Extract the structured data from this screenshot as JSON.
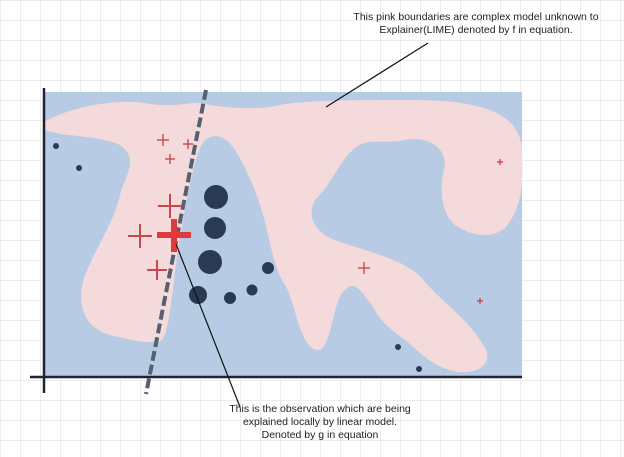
{
  "annotations": {
    "pink_boundary_note": {
      "line1": "This pink boundaries are complex model unknown to",
      "line2": "Explainer(LIME) denoted by f in equation."
    },
    "observation_note": {
      "line1": "This is the observation which are being",
      "line2": "explained locally by linear model.",
      "line3": "Denoted by g in equation"
    }
  },
  "colors": {
    "blue_region": "#b7cce4",
    "pink_region": "#f4dada",
    "cross": "#c9474e",
    "highlight_cross": "#e03b3b",
    "dot": "#2a3a55",
    "axis": "#1e2433",
    "dashed_line": "#556070",
    "leader_line": "#111111"
  }
}
